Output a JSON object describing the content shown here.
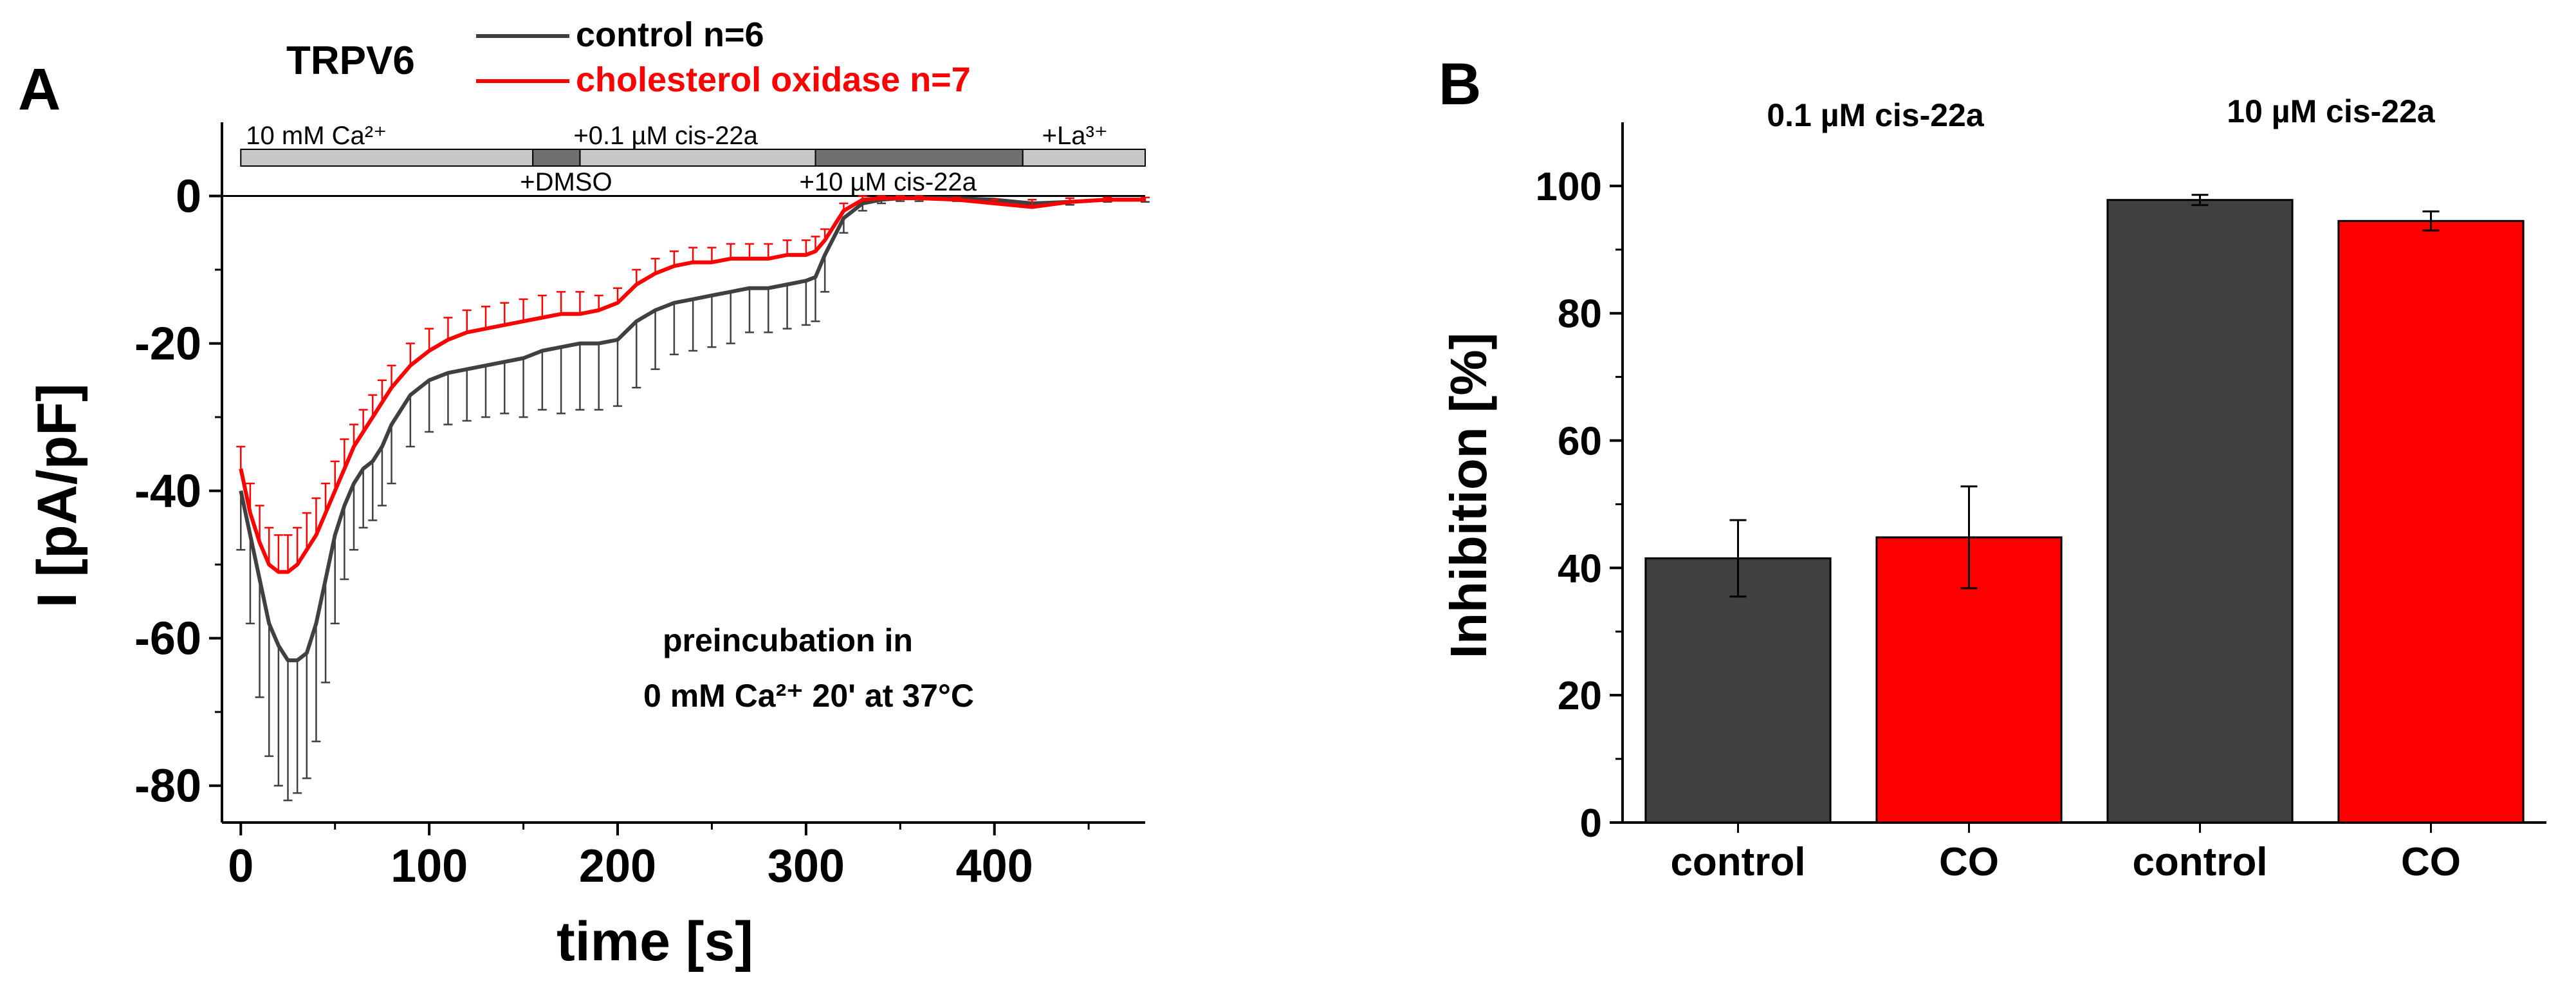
{
  "colors": {
    "control": "#404040",
    "co": "#ff0000",
    "bar_light": "#c8c8c8",
    "bar_dark": "#707070"
  },
  "panel_a": {
    "letter": "A",
    "title": "TRPV6",
    "legend": [
      {
        "label": "control n=6",
        "color": "#404040"
      },
      {
        "label": "cholesterol oxidase n=7",
        "color": "#ff0000"
      }
    ],
    "application_bar": {
      "segments_upper": [
        {
          "label": "10 mM Ca²⁺",
          "start": 0,
          "end": 155,
          "shade": "light"
        },
        {
          "label": "+0.1 µM cis-22a",
          "start": 180,
          "end": 305,
          "shade": "light"
        },
        {
          "label": "+La³⁺",
          "start": 415,
          "end": 480,
          "shade": "light"
        }
      ],
      "segments_lower": [
        {
          "label": "+DMSO",
          "start": 155,
          "end": 180,
          "shade": "dark"
        },
        {
          "label": "+10 µM cis-22a",
          "start": 305,
          "end": 415,
          "shade": "dark"
        }
      ]
    },
    "note_line1": "preincubation in",
    "note_line2": "0 mM Ca²⁺ 20' at 37°C"
  },
  "panel_b": {
    "letter": "B",
    "conditions": [
      "0.1 µM cis-22a",
      "10 µM cis-22a"
    ]
  },
  "chart_data": [
    {
      "type": "line",
      "title": "TRPV6",
      "xlabel": "time [s]",
      "ylabel": "I [pA/pF]",
      "xlim": [
        -10,
        480
      ],
      "ylim": [
        -85,
        10
      ],
      "xticks": [
        0,
        100,
        200,
        300,
        400
      ],
      "yticks": [
        0,
        -20,
        -40,
        -60,
        -80
      ],
      "series": [
        {
          "name": "control n=6",
          "color": "#404040",
          "x": [
            0,
            5,
            10,
            15,
            20,
            25,
            30,
            35,
            40,
            45,
            50,
            55,
            60,
            65,
            70,
            75,
            80,
            90,
            100,
            110,
            120,
            130,
            140,
            150,
            160,
            170,
            180,
            190,
            200,
            210,
            220,
            230,
            240,
            250,
            260,
            270,
            280,
            290,
            300,
            305,
            310,
            320,
            330,
            340,
            350,
            360,
            380,
            400,
            420,
            440,
            460,
            480
          ],
          "y": [
            -40,
            -46,
            -52,
            -58,
            -61,
            -63,
            -63,
            -62,
            -58,
            -52,
            -46,
            -42,
            -39,
            -37,
            -36,
            -34,
            -31,
            -27,
            -25,
            -24,
            -23.5,
            -23,
            -22.5,
            -22,
            -21,
            -20.5,
            -20,
            -20,
            -19.5,
            -17,
            -15.5,
            -14.5,
            -14,
            -13.5,
            -13,
            -12.5,
            -12.5,
            -12,
            -11.5,
            -11,
            -8,
            -3,
            -1,
            -0.5,
            -0.3,
            -0.3,
            -0.3,
            -0.5,
            -1,
            -0.8,
            -0.5,
            -0.5
          ],
          "error": [
            8,
            12,
            16,
            18,
            19,
            19,
            18,
            17,
            16,
            14,
            12,
            10,
            9,
            8,
            8,
            8,
            8,
            7,
            7,
            7,
            7,
            7,
            7,
            8,
            8,
            9,
            9,
            9,
            9,
            9,
            8,
            7,
            7,
            7,
            7,
            6,
            6,
            6,
            6,
            6,
            5,
            2,
            1,
            0.5,
            0.4,
            0.4,
            0.4,
            0.4,
            0.5,
            0.4,
            0.3,
            0.3
          ]
        },
        {
          "name": "cholesterol oxidase n=7",
          "color": "#ff0000",
          "x": [
            0,
            5,
            10,
            15,
            20,
            25,
            30,
            35,
            40,
            45,
            50,
            55,
            60,
            65,
            70,
            75,
            80,
            90,
            100,
            110,
            120,
            130,
            140,
            150,
            160,
            170,
            180,
            190,
            200,
            210,
            220,
            230,
            240,
            250,
            260,
            270,
            280,
            290,
            300,
            305,
            310,
            320,
            330,
            340,
            350,
            360,
            380,
            400,
            420,
            440,
            460,
            480
          ],
          "y": [
            -37,
            -43,
            -47,
            -50,
            -51,
            -51,
            -50,
            -48,
            -46,
            -43,
            -40,
            -37,
            -34,
            -32,
            -30,
            -28,
            -26,
            -23,
            -21,
            -19.5,
            -18.5,
            -18,
            -17.5,
            -17,
            -16.5,
            -16,
            -16,
            -15.5,
            -14.5,
            -12,
            -10.5,
            -9.5,
            -9,
            -9,
            -8.5,
            -8.5,
            -8.5,
            -8,
            -8,
            -7.5,
            -6,
            -2,
            -0.5,
            -0.3,
            -0.3,
            -0.3,
            -0.5,
            -1,
            -1.5,
            -0.8,
            -0.5,
            -0.5
          ],
          "error": [
            3,
            4,
            5,
            5,
            5,
            5,
            5,
            5,
            5,
            4,
            4,
            4,
            3,
            3,
            3,
            3,
            3,
            3,
            3,
            3,
            3,
            3,
            3,
            3,
            3,
            3,
            3,
            2,
            2,
            2,
            2,
            2,
            2,
            2,
            2,
            2,
            2,
            2,
            2,
            2,
            1.5,
            1,
            0.5,
            0.3,
            0.3,
            0.3,
            0.3,
            0.5,
            1,
            0.5,
            0.3,
            0.3
          ]
        }
      ]
    },
    {
      "type": "bar",
      "title": "",
      "xlabel": "",
      "ylabel": "Inhibition [%]",
      "ylim": [
        0,
        110
      ],
      "yticks": [
        0,
        20,
        40,
        60,
        80,
        100
      ],
      "categories": [
        "control",
        "CO",
        "control",
        "CO"
      ],
      "groups": [
        "0.1 µM cis-22a",
        "0.1 µM cis-22a",
        "10 µM cis-22a",
        "10 µM cis-22a"
      ],
      "values": [
        41.5,
        44.8,
        97.8,
        94.5
      ],
      "errors": [
        6,
        8,
        0.8,
        1.5
      ],
      "colors": [
        "#404040",
        "#ff0000",
        "#404040",
        "#ff0000"
      ]
    }
  ]
}
